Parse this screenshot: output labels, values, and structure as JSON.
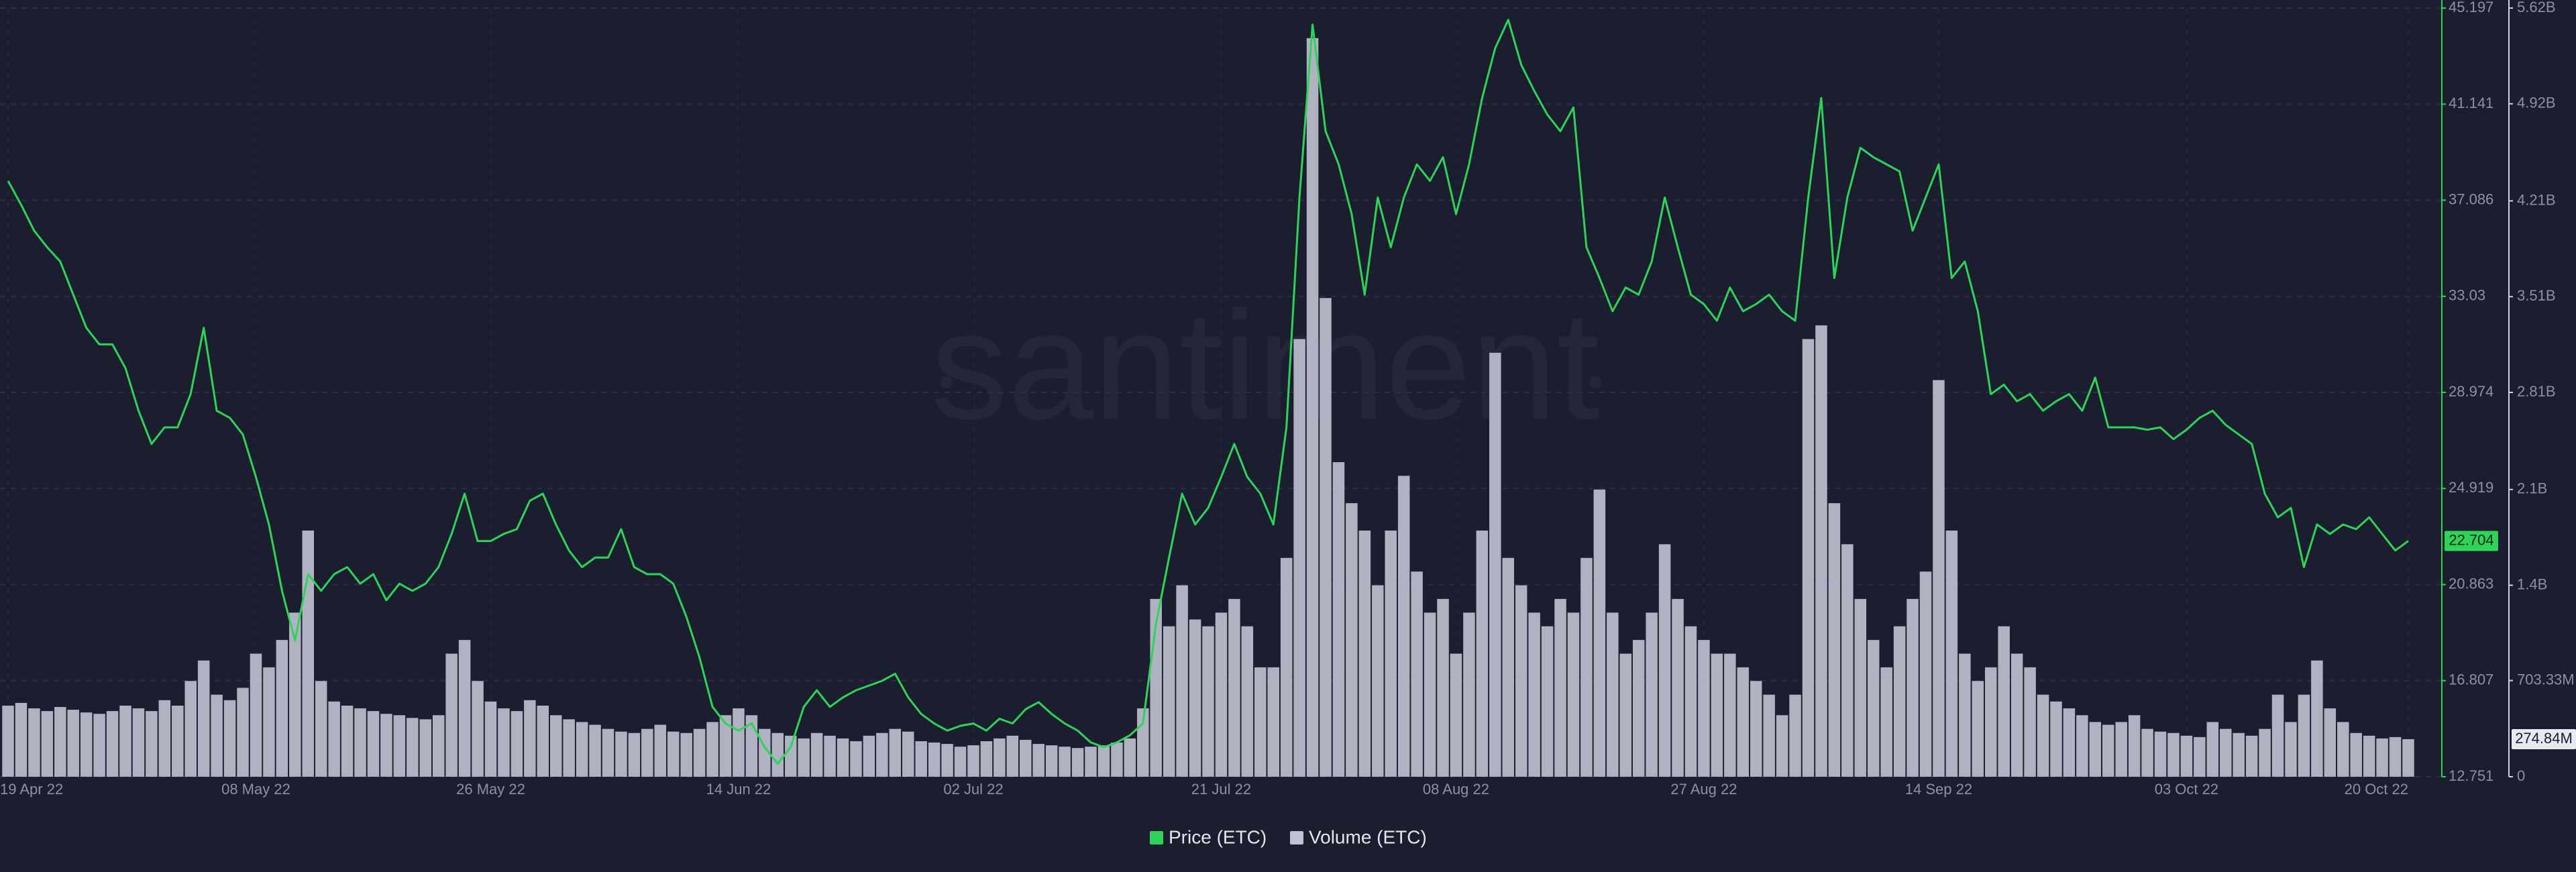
{
  "chart_data": {
    "type": "line-volume",
    "watermark": "santiment",
    "categories": [
      "19 Apr 22",
      null,
      null,
      null,
      null,
      null,
      null,
      null,
      null,
      null,
      null,
      null,
      null,
      null,
      null,
      null,
      null,
      null,
      null,
      "08 May 22",
      null,
      null,
      null,
      null,
      null,
      null,
      null,
      null,
      null,
      null,
      null,
      null,
      null,
      null,
      null,
      null,
      null,
      "26 May 22",
      null,
      null,
      null,
      null,
      null,
      null,
      null,
      null,
      null,
      null,
      null,
      null,
      null,
      null,
      null,
      null,
      null,
      null,
      "14 Jun 22",
      null,
      null,
      null,
      null,
      null,
      null,
      null,
      null,
      null,
      null,
      null,
      null,
      null,
      null,
      null,
      null,
      null,
      "02 Jul 22",
      null,
      null,
      null,
      null,
      null,
      null,
      null,
      null,
      null,
      null,
      null,
      null,
      null,
      null,
      null,
      null,
      null,
      null,
      "21 Jul 22",
      null,
      null,
      null,
      null,
      null,
      null,
      null,
      null,
      null,
      null,
      null,
      null,
      null,
      null,
      null,
      null,
      null,
      "08 Aug 22",
      null,
      null,
      null,
      null,
      null,
      null,
      null,
      null,
      null,
      null,
      null,
      null,
      null,
      null,
      null,
      null,
      null,
      null,
      "27 Aug 22",
      null,
      null,
      null,
      null,
      null,
      null,
      null,
      null,
      null,
      null,
      null,
      null,
      null,
      null,
      null,
      null,
      null,
      "14 Sep 22",
      null,
      null,
      null,
      null,
      null,
      null,
      null,
      null,
      null,
      null,
      null,
      null,
      null,
      null,
      null,
      null,
      null,
      null,
      "03 Oct 22",
      null,
      null,
      null,
      null,
      null,
      null,
      null,
      null,
      null,
      null,
      null,
      null,
      null,
      null,
      null,
      null,
      "20 Oct 22"
    ],
    "series": [
      {
        "name": "Price (ETC)",
        "color": "#2fd35a",
        "values": [
          37.9,
          36.9,
          35.8,
          35.1,
          34.5,
          33.1,
          31.7,
          31.0,
          31.0,
          30.0,
          28.2,
          26.8,
          27.5,
          27.5,
          28.9,
          31.7,
          28.2,
          27.9,
          27.2,
          25.4,
          23.4,
          20.6,
          18.5,
          21.3,
          20.6,
          21.3,
          21.6,
          20.9,
          21.3,
          20.2,
          20.9,
          20.6,
          20.9,
          21.6,
          23.0,
          24.7,
          22.7,
          22.7,
          23.0,
          23.2,
          24.4,
          24.7,
          23.4,
          22.3,
          21.6,
          22.0,
          22.0,
          23.2,
          21.6,
          21.3,
          21.3,
          20.9,
          19.5,
          17.8,
          15.7,
          15.0,
          14.7,
          15.0,
          14.0,
          13.3,
          14.0,
          15.7,
          16.4,
          15.7,
          16.1,
          16.4,
          16.6,
          16.8,
          17.1,
          16.1,
          15.4,
          15.0,
          14.7,
          14.9,
          15.0,
          14.7,
          15.2,
          15.0,
          15.6,
          15.9,
          15.4,
          15.0,
          14.7,
          14.2,
          14.0,
          14.2,
          14.5,
          15.0,
          19.2,
          22.0,
          24.7,
          23.4,
          24.1,
          25.4,
          26.8,
          25.4,
          24.7,
          23.4,
          27.5,
          37.2,
          44.5,
          40.0,
          38.6,
          36.5,
          33.1,
          37.2,
          35.1,
          37.2,
          38.6,
          37.9,
          38.9,
          36.5,
          38.6,
          41.4,
          43.5,
          44.7,
          42.8,
          41.7,
          40.7,
          40.0,
          41.0,
          35.1,
          33.8,
          32.4,
          33.4,
          33.1,
          34.5,
          37.2,
          35.1,
          33.1,
          32.7,
          32.0,
          33.4,
          32.4,
          32.7,
          33.1,
          32.4,
          32.0,
          37.2,
          41.4,
          33.8,
          37.2,
          39.3,
          38.9,
          38.6,
          38.3,
          35.8,
          37.2,
          38.6,
          33.8,
          34.5,
          32.4,
          28.9,
          29.3,
          28.6,
          28.9,
          28.2,
          28.6,
          28.9,
          28.2,
          29.6,
          27.5,
          27.5,
          27.5,
          27.4,
          27.5,
          27.0,
          27.4,
          27.9,
          28.2,
          27.6,
          27.2,
          26.8,
          24.7,
          23.7,
          24.1,
          21.6,
          23.4,
          23.0,
          23.4,
          23.2,
          23.7,
          23.0,
          22.3,
          22.704
        ]
      },
      {
        "name": "Volume (ETC)",
        "color": "#bfc2d2",
        "axis": "y2",
        "values": [
          520000000,
          540000000,
          500000000,
          480000000,
          510000000,
          490000000,
          470000000,
          460000000,
          480000000,
          520000000,
          500000000,
          480000000,
          560000000,
          520000000,
          700000000,
          850000000,
          600000000,
          560000000,
          650000000,
          900000000,
          800000000,
          1000000000,
          1200000000,
          1800000000,
          700000000,
          550000000,
          520000000,
          500000000,
          480000000,
          460000000,
          450000000,
          430000000,
          420000000,
          450000000,
          900000000,
          1000000000,
          700000000,
          550000000,
          500000000,
          480000000,
          560000000,
          520000000,
          450000000,
          420000000,
          400000000,
          380000000,
          350000000,
          330000000,
          320000000,
          350000000,
          380000000,
          330000000,
          320000000,
          350000000,
          400000000,
          450000000,
          500000000,
          450000000,
          350000000,
          320000000,
          300000000,
          280000000,
          320000000,
          300000000,
          280000000,
          260000000,
          300000000,
          320000000,
          350000000,
          330000000,
          260000000,
          250000000,
          240000000,
          220000000,
          230000000,
          260000000,
          280000000,
          300000000,
          270000000,
          240000000,
          230000000,
          220000000,
          210000000,
          220000000,
          230000000,
          250000000,
          280000000,
          500000000,
          1300000000,
          1100000000,
          1400000000,
          1150000000,
          1100000000,
          1200000000,
          1300000000,
          1100000000,
          800000000,
          800000000,
          1600000000,
          3200000000,
          5400000000,
          3500000000,
          2300000000,
          2000000000,
          1800000000,
          1400000000,
          1800000000,
          2200000000,
          1500000000,
          1200000000,
          1300000000,
          900000000,
          1200000000,
          1800000000,
          3100000000,
          1600000000,
          1400000000,
          1200000000,
          1100000000,
          1300000000,
          1200000000,
          1600000000,
          2100000000,
          1200000000,
          900000000,
          1000000000,
          1200000000,
          1700000000,
          1300000000,
          1100000000,
          1000000000,
          900000000,
          900000000,
          800000000,
          700000000,
          600000000,
          450000000,
          600000000,
          3200000000,
          3300000000,
          2000000000,
          1700000000,
          1300000000,
          1000000000,
          800000000,
          1100000000,
          1300000000,
          1500000000,
          2900000000,
          1800000000,
          900000000,
          700000000,
          800000000,
          1100000000,
          900000000,
          800000000,
          600000000,
          550000000,
          500000000,
          450000000,
          400000000,
          380000000,
          400000000,
          450000000,
          350000000,
          330000000,
          320000000,
          300000000,
          290000000,
          400000000,
          350000000,
          320000000,
          300000000,
          350000000,
          600000000,
          400000000,
          600000000,
          850000000,
          500000000,
          400000000,
          320000000,
          300000000,
          280000000,
          290000000,
          274840000
        ]
      }
    ],
    "current_volume": {
      "value": 274840000,
      "label": "274.84M"
    },
    "ylim": [
      12.751,
      45.197
    ],
    "yticks": [
      12.751,
      16.807,
      20.863,
      24.919,
      28.974,
      33.03,
      37.086,
      41.141,
      45.197
    ],
    "y2lim": [
      0,
      5620000000
    ],
    "y2ticks": [
      0,
      {
        "value": 703330000,
        "label": "703.33M"
      },
      {
        "value": 1400000000,
        "label": "1.4B"
      },
      {
        "value": 2100000000,
        "label": "2.1B"
      },
      {
        "value": 2810000000,
        "label": "2.81B"
      },
      {
        "value": 3510000000,
        "label": "3.51B"
      },
      {
        "value": 4210000000,
        "label": "4.21B"
      },
      {
        "value": 4920000000,
        "label": "4.92B"
      },
      {
        "value": 5620000000,
        "label": "5.62B"
      }
    ],
    "grid": true
  }
}
